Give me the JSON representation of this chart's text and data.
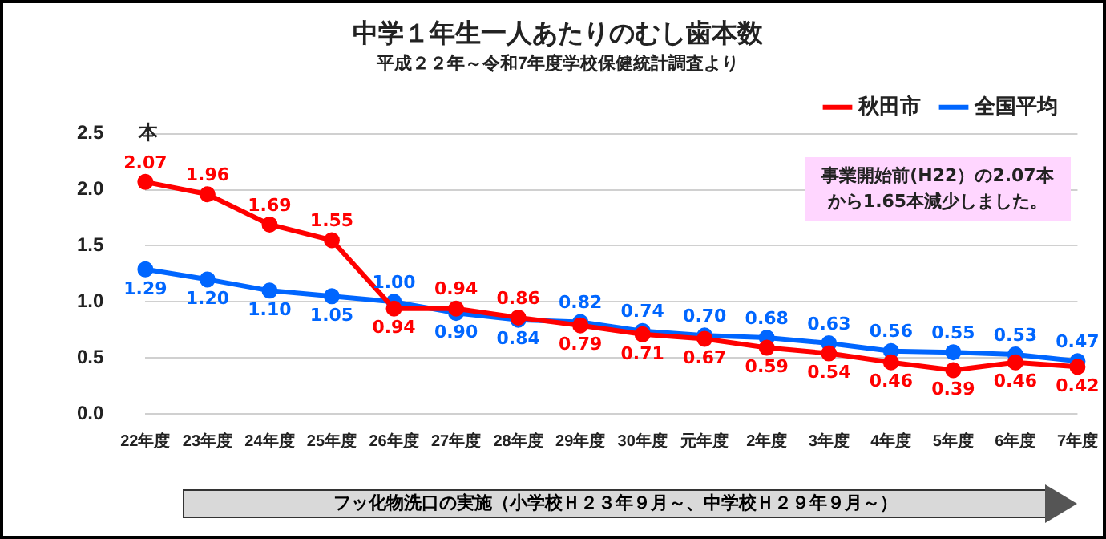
{
  "chart_data": {
    "type": "line",
    "title": "中学１年生一人あたりのむし歯本数",
    "subtitle": "平成２２年～令和7年度学校保健統計調査より",
    "ylabel": "本",
    "categories": [
      "22年度",
      "23年度",
      "24年度",
      "25年度",
      "26年度",
      "27年度",
      "28年度",
      "29年度",
      "30年度",
      "元年度",
      "2年度",
      "3年度",
      "4年度",
      "5年度",
      "6年度",
      "7年度"
    ],
    "series": [
      {
        "name": "秋田市",
        "color": "#ff0000",
        "values": [
          2.07,
          1.96,
          1.69,
          1.55,
          0.94,
          0.94,
          0.86,
          0.79,
          0.71,
          0.67,
          0.59,
          0.54,
          0.46,
          0.39,
          0.46,
          0.42
        ],
        "value_labels": [
          "2.07",
          "1.96",
          "1.69",
          "1.55",
          "0.94",
          "0.94",
          "0.86",
          "0.79",
          "0.71",
          "0.67",
          "0.59",
          "0.54",
          "0.46",
          "0.39",
          "0.46",
          "0.42"
        ]
      },
      {
        "name": "全国平均",
        "color": "#0066ff",
        "values": [
          1.29,
          1.2,
          1.1,
          1.05,
          1.0,
          0.9,
          0.84,
          0.82,
          0.74,
          0.7,
          0.68,
          0.63,
          0.56,
          0.55,
          0.53,
          0.47
        ],
        "value_labels": [
          "1.29",
          "1.20",
          "1.10",
          "1.05",
          "1.00",
          "0.90",
          "0.84",
          "0.82",
          "0.74",
          "0.70",
          "0.68",
          "0.63",
          "0.56",
          "0.55",
          "0.53",
          "0.47"
        ]
      }
    ],
    "ylim": [
      0,
      2.5
    ],
    "yticks": [
      {
        "value": 0,
        "label": "0.0"
      },
      {
        "value": 0.5,
        "label": "0.5"
      },
      {
        "value": 1,
        "label": "1.0"
      },
      {
        "value": 1.5,
        "label": "1.5"
      },
      {
        "value": 2,
        "label": "2.0"
      },
      {
        "value": 2.5,
        "label": "2.5"
      }
    ],
    "grid": "y",
    "legend": "top right",
    "marker": "circle",
    "line_style": "solid",
    "annotations": [
      "事業開始前(H22）の2.07本から1.65本減少しました。",
      "フッ化物洗口の実施（小学校Ｈ２３年９月～、中学校Ｈ２９年９月～）"
    ]
  }
}
